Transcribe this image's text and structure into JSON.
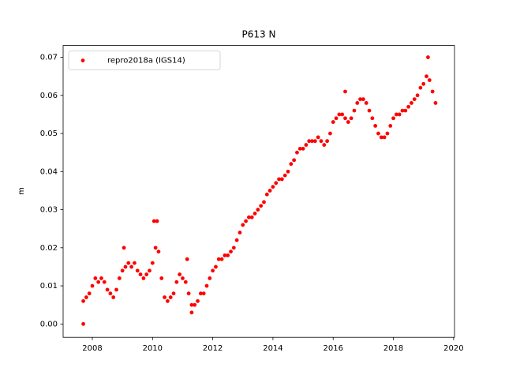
{
  "chart_data": {
    "type": "scatter",
    "title": "P613 N",
    "ylabel": "m",
    "x": [
      2007.7,
      2007.8,
      2007.9,
      2008.0,
      2008.1,
      2008.2,
      2008.3,
      2008.4,
      2008.5,
      2008.6,
      2008.7,
      2008.8,
      2008.9,
      2009.0,
      2009.1,
      2009.2,
      2009.3,
      2009.4,
      2009.5,
      2009.6,
      2009.7,
      2009.8,
      2009.9,
      2010.0,
      2010.1,
      2010.2,
      2010.3,
      2010.4,
      2010.5,
      2010.6,
      2010.7,
      2010.8,
      2010.9,
      2011.0,
      2011.1,
      2011.2,
      2011.3,
      2011.4,
      2011.5,
      2011.6,
      2011.7,
      2011.8,
      2011.9,
      2012.0,
      2012.1,
      2012.2,
      2012.3,
      2012.4,
      2012.5,
      2012.6,
      2012.7,
      2012.8,
      2012.9,
      2013.0,
      2013.1,
      2013.2,
      2013.3,
      2013.4,
      2013.5,
      2013.6,
      2013.7,
      2013.8,
      2013.9,
      2014.0,
      2014.1,
      2014.2,
      2014.3,
      2014.4,
      2014.5,
      2014.6,
      2014.7,
      2014.8,
      2014.9,
      2015.0,
      2015.1,
      2015.2,
      2015.3,
      2015.4,
      2015.5,
      2015.6,
      2015.7,
      2015.8,
      2015.9,
      2016.0,
      2016.1,
      2016.2,
      2016.3,
      2016.4,
      2016.5,
      2016.6,
      2016.7,
      2016.8,
      2016.9,
      2017.0,
      2017.1,
      2017.2,
      2017.3,
      2017.4,
      2017.5,
      2017.6,
      2017.7,
      2017.8,
      2017.9,
      2018.0,
      2018.1,
      2018.2,
      2018.3,
      2018.4,
      2018.5,
      2018.6,
      2018.7,
      2018.8,
      2018.9,
      2019.0,
      2019.1,
      2019.2,
      2019.3,
      2019.4,
      2007.7,
      2010.05,
      2010.15,
      2019.15,
      2016.4,
      2011.3,
      2009.05,
      2011.15
    ],
    "series": [
      {
        "name": "repro2018a (IGS14)",
        "color": "#ff0000",
        "values": [
          0.006,
          0.007,
          0.008,
          0.01,
          0.012,
          0.011,
          0.012,
          0.011,
          0.009,
          0.008,
          0.007,
          0.009,
          0.012,
          0.014,
          0.015,
          0.016,
          0.015,
          0.016,
          0.014,
          0.013,
          0.012,
          0.013,
          0.014,
          0.016,
          0.02,
          0.019,
          0.012,
          0.007,
          0.006,
          0.007,
          0.008,
          0.011,
          0.013,
          0.012,
          0.011,
          0.008,
          0.005,
          0.005,
          0.006,
          0.008,
          0.008,
          0.01,
          0.012,
          0.014,
          0.015,
          0.017,
          0.017,
          0.018,
          0.018,
          0.019,
          0.02,
          0.022,
          0.024,
          0.026,
          0.027,
          0.028,
          0.028,
          0.029,
          0.03,
          0.031,
          0.032,
          0.034,
          0.035,
          0.036,
          0.037,
          0.038,
          0.038,
          0.039,
          0.04,
          0.042,
          0.043,
          0.045,
          0.046,
          0.046,
          0.047,
          0.048,
          0.048,
          0.048,
          0.049,
          0.048,
          0.047,
          0.048,
          0.05,
          0.053,
          0.054,
          0.055,
          0.055,
          0.054,
          0.053,
          0.054,
          0.056,
          0.058,
          0.059,
          0.059,
          0.058,
          0.056,
          0.054,
          0.052,
          0.05,
          0.049,
          0.049,
          0.05,
          0.052,
          0.054,
          0.055,
          0.055,
          0.056,
          0.056,
          0.057,
          0.058,
          0.059,
          0.06,
          0.062,
          0.063,
          0.065,
          0.064,
          0.061,
          0.058,
          0.0,
          0.027,
          0.027,
          0.07,
          0.061,
          0.003,
          0.02,
          0.017
        ]
      }
    ],
    "xlim": [
      2007.03,
      2020.03
    ],
    "xticks": [
      2008,
      2010,
      2012,
      2014,
      2016,
      2018,
      2020
    ],
    "ylim": [
      -0.0035,
      0.0731
    ],
    "yticks": [
      {
        "value": 0,
        "label": "0.00"
      },
      {
        "value": 0.01,
        "label": "0.01"
      },
      {
        "value": 0.02,
        "label": "0.02"
      },
      {
        "value": 0.03,
        "label": "0.03"
      },
      {
        "value": 0.04,
        "label": "0.04"
      },
      {
        "value": 0.05,
        "label": "0.05"
      },
      {
        "value": 0.06,
        "label": "0.06"
      },
      {
        "value": 0.07,
        "label": "0.07"
      }
    ],
    "legend": "upper left"
  }
}
